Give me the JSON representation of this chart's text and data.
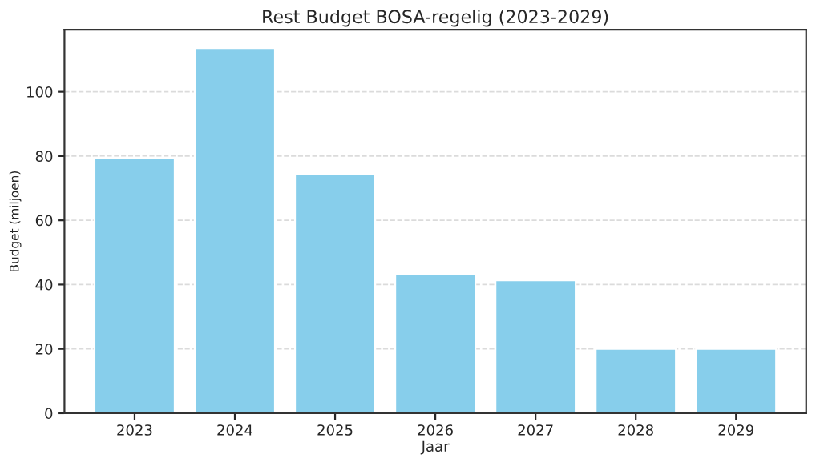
{
  "chart_data": {
    "type": "bar",
    "title": "Rest Budget BOSA-regelig (2023-2029)",
    "xlabel": "Jaar",
    "ylabel": "Budget (miljoen)",
    "categories": [
      "2023",
      "2024",
      "2025",
      "2026",
      "2027",
      "2028",
      "2029"
    ],
    "values": [
      79.5,
      113.6,
      74.5,
      43.3,
      41.3,
      20.0,
      20.0
    ],
    "color": "#87ceeb",
    "ylim": [
      0,
      119.3
    ],
    "yticks": [
      0,
      20,
      40,
      60,
      80,
      100
    ],
    "grid": "y"
  }
}
